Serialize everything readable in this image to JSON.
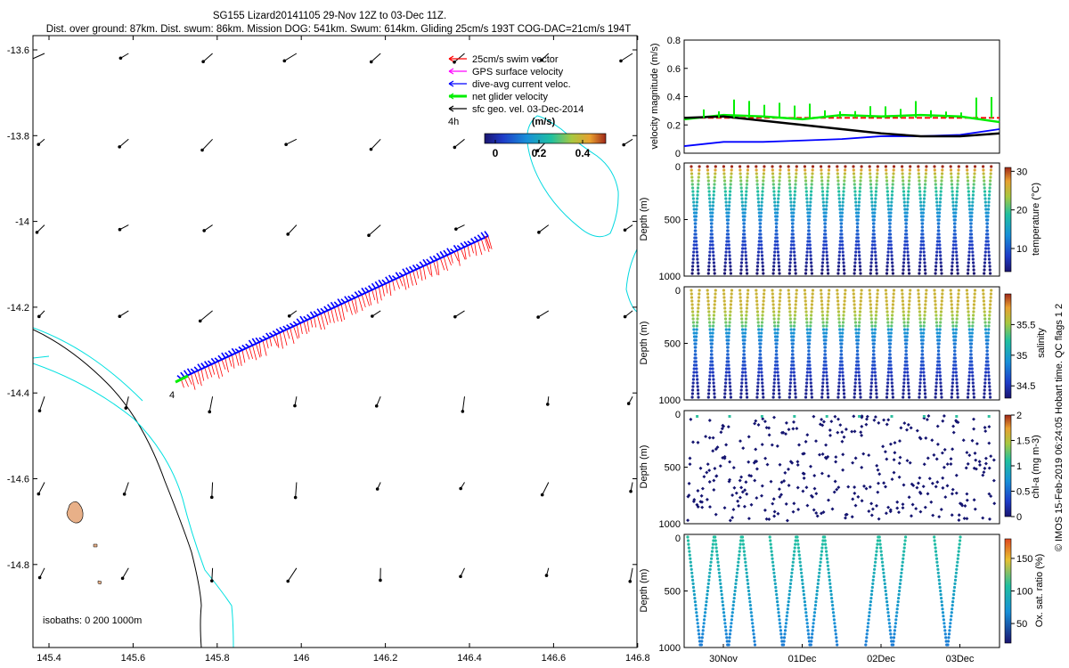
{
  "figure": {
    "title_line1": "SG155 Lizard20141105 29-Nov 12Z to 03-Dec 11Z.",
    "title_line2": "Dist. over ground: 87km. Dist. swum: 86km. Mission DOG: 541km. Swum: 614km. Gliding 25cm/s 193T COG-DAC=21cm/s 194T",
    "credit": "© IMOS 15-Feb-2019 06:24:05 Hobart time. QC flags 1  2"
  },
  "colors": {
    "swim": "#ff0000",
    "gps": "#ff00ff",
    "dac": "#0000ff",
    "net": "#00ee00",
    "geo": "#000000",
    "coast": "#000000",
    "isobath200": "#000000",
    "isobath1000": "#00e0e0",
    "island": "#e8b088",
    "blue_fill": "#1828c8"
  },
  "map": {
    "legend": [
      {
        "label": "25cm/s swim vector",
        "color": "#ff0000"
      },
      {
        "label": "GPS surface velocity",
        "color": "#ff00ff"
      },
      {
        "label": "dive-avg current veloc.",
        "color": "#0000ff"
      },
      {
        "label": "net glider velocity",
        "color": "#00ee00"
      },
      {
        "label": "sfc geo. vel. 03-Dec-2014",
        "color": "#000000"
      }
    ],
    "colorbar_title": "(m/s)",
    "colorbar_ticks": [
      "0",
      "0.2",
      "0.4"
    ],
    "track_label_start": "4",
    "track_label_end": "4h",
    "isobath_text": "isobaths: 0   200  1000m",
    "x_ticks": [
      "145.4",
      "145.6",
      "145.8",
      "146",
      "146.2",
      "146.4",
      "146.6",
      "146.8"
    ],
    "y_ticks": [
      "-13.6",
      "-13.8",
      "-14",
      "-14.2",
      "-14.4",
      "-14.6",
      "-14.8"
    ]
  },
  "chart_data": [
    {
      "type": "line",
      "title": "velocity magnitude",
      "ylabel": "velocity magnitude (m/s)",
      "ylim": [
        0,
        0.8
      ],
      "y_ticks": [
        "0",
        "0.2",
        "0.4",
        "0.6",
        "0.8"
      ],
      "x": [
        0,
        0.5,
        1,
        1.5,
        2,
        2.5,
        3,
        3.5,
        4
      ],
      "series": [
        {
          "name": "swim",
          "color": "#ff0000",
          "values": [
            0.25,
            0.25,
            0.25,
            0.25,
            0.25,
            0.25,
            0.25,
            0.25,
            0.25
          ]
        },
        {
          "name": "net glider",
          "color": "#00ee00",
          "values": [
            0.24,
            0.27,
            0.26,
            0.24,
            0.27,
            0.26,
            0.27,
            0.26,
            0.22
          ]
        },
        {
          "name": "dive-avg current",
          "color": "#0000ff",
          "values": [
            0.05,
            0.08,
            0.08,
            0.09,
            0.1,
            0.12,
            0.12,
            0.13,
            0.17
          ]
        },
        {
          "name": "sfc geo",
          "color": "#000000",
          "values": [
            0.25,
            0.26,
            0.23,
            0.2,
            0.17,
            0.14,
            0.12,
            0.12,
            0.14
          ]
        }
      ]
    },
    {
      "type": "scatter",
      "title": "temperature section",
      "ylabel": "Depth (m)",
      "y_ticks": [
        "0",
        "500",
        "1000"
      ],
      "ylim": [
        1000,
        0
      ],
      "colorbar_label": "temperature (°C)",
      "colorbar_ticks": [
        "10",
        "20",
        "30"
      ],
      "color_range": [
        4,
        31
      ],
      "dives": 38,
      "max_depth": 1000
    },
    {
      "type": "scatter",
      "title": "salinity section",
      "ylabel": "Depth (m)",
      "y_ticks": [
        "0",
        "500",
        "1000"
      ],
      "ylim": [
        1000,
        0
      ],
      "colorbar_label": "salinity",
      "colorbar_ticks": [
        "34.5",
        "35",
        "35.5"
      ],
      "color_range": [
        34.3,
        36
      ],
      "dives": 38,
      "max_depth": 1000
    },
    {
      "type": "scatter",
      "title": "chlorophyll section",
      "ylabel": "Depth (m)",
      "y_ticks": [
        "0",
        "500",
        "1000"
      ],
      "ylim": [
        1000,
        0
      ],
      "colorbar_label": "chl-a (mg m-3)",
      "colorbar_ticks": [
        "0",
        "0.5",
        "1",
        "1.5",
        "2"
      ],
      "color_range": [
        0,
        2
      ],
      "dives": 38,
      "max_depth": 1000
    },
    {
      "type": "scatter",
      "title": "oxygen section",
      "ylabel": "Depth (m)",
      "y_ticks": [
        "0",
        "500",
        "1000"
      ],
      "ylim": [
        1000,
        0
      ],
      "colorbar_label": "Ox. sat. ratio (%)",
      "colorbar_ticks": [
        "50",
        "100",
        "150"
      ],
      "color_range": [
        20,
        180
      ],
      "x_ticks": [
        "30Nov",
        "01Dec",
        "02Dec",
        "03Dec"
      ],
      "dive_groups": [
        [
          0,
          4
        ],
        [
          6,
          10
        ],
        [
          13,
          15
        ],
        [
          18,
          19
        ]
      ],
      "max_depth": 1000
    }
  ]
}
